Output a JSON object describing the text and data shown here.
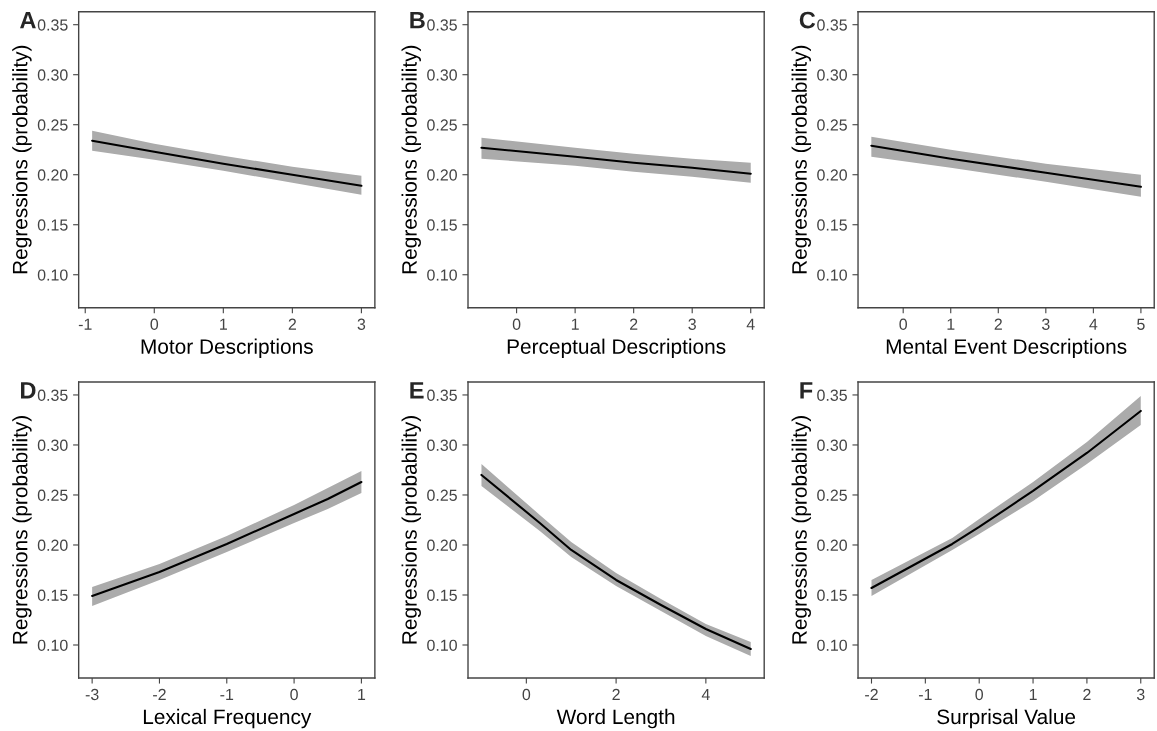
{
  "chart_data": [
    {
      "type": "line",
      "title": "A",
      "xlabel": "Motor Descriptions",
      "ylabel": "Regressions (probability)",
      "x": [
        -0.9,
        0,
        1,
        2,
        3
      ],
      "series": [
        {
          "color": "#000000",
          "values": [
            0.234,
            0.223,
            0.211,
            0.2,
            0.189
          ],
          "lower": [
            0.224,
            0.215,
            0.204,
            0.192,
            0.18
          ],
          "upper": [
            0.244,
            0.231,
            0.219,
            0.208,
            0.199
          ]
        }
      ],
      "xlim": [
        -1.095,
        3.195
      ],
      "xticks": [
        -1,
        0,
        1,
        2,
        3
      ],
      "ylim": [
        0.067,
        0.363
      ],
      "yticks": [
        {
          "value": 0.1,
          "label": "0.10"
        },
        {
          "value": 0.15,
          "label": "0.15"
        },
        {
          "value": 0.2,
          "label": "0.20"
        },
        {
          "value": 0.25,
          "label": "0.25"
        },
        {
          "value": 0.3,
          "label": "0.30"
        },
        {
          "value": 0.35,
          "label": "0.35"
        }
      ]
    },
    {
      "type": "line",
      "title": "B",
      "xlabel": "Perceptual Descriptions",
      "ylabel": "Regressions (probability)",
      "x": [
        -0.6,
        1,
        2,
        3,
        4
      ],
      "series": [
        {
          "color": "#000000",
          "values": [
            0.227,
            0.218,
            0.212,
            0.207,
            0.201
          ],
          "lower": [
            0.216,
            0.209,
            0.203,
            0.198,
            0.192
          ],
          "upper": [
            0.237,
            0.227,
            0.221,
            0.216,
            0.212
          ]
        }
      ],
      "xlim": [
        -0.83,
        4.23
      ],
      "xticks": [
        0,
        1,
        2,
        3,
        4
      ],
      "ylim": [
        0.067,
        0.363
      ],
      "yticks": [
        {
          "value": 0.1,
          "label": "0.10"
        },
        {
          "value": 0.15,
          "label": "0.15"
        },
        {
          "value": 0.2,
          "label": "0.20"
        },
        {
          "value": 0.25,
          "label": "0.25"
        },
        {
          "value": 0.3,
          "label": "0.30"
        },
        {
          "value": 0.35,
          "label": "0.35"
        }
      ]
    },
    {
      "type": "line",
      "title": "C",
      "xlabel": "Mental Event Descriptions",
      "ylabel": "Regressions (probability)",
      "x": [
        -0.67,
        1,
        3,
        5
      ],
      "series": [
        {
          "color": "#000000",
          "values": [
            0.229,
            0.216,
            0.202,
            0.188
          ],
          "lower": [
            0.218,
            0.207,
            0.193,
            0.178
          ],
          "upper": [
            0.238,
            0.225,
            0.211,
            0.2
          ]
        }
      ],
      "xlim": [
        -0.95,
        5.28
      ],
      "xticks": [
        0,
        1,
        2,
        3,
        4,
        5
      ],
      "ylim": [
        0.067,
        0.363
      ],
      "yticks": [
        {
          "value": 0.1,
          "label": "0.10"
        },
        {
          "value": 0.15,
          "label": "0.15"
        },
        {
          "value": 0.2,
          "label": "0.20"
        },
        {
          "value": 0.25,
          "label": "0.25"
        },
        {
          "value": 0.3,
          "label": "0.30"
        },
        {
          "value": 0.35,
          "label": "0.35"
        }
      ]
    },
    {
      "type": "line",
      "title": "D",
      "xlabel": "Lexical Frequency",
      "ylabel": "Regressions (probability)",
      "x": [
        -3,
        -2,
        -1,
        0,
        0.5,
        1
      ],
      "series": [
        {
          "color": "#000000",
          "values": [
            0.149,
            0.173,
            0.201,
            0.231,
            0.246,
            0.263
          ],
          "lower": [
            0.139,
            0.165,
            0.193,
            0.222,
            0.236,
            0.252
          ],
          "upper": [
            0.158,
            0.181,
            0.209,
            0.24,
            0.257,
            0.274
          ]
        }
      ],
      "xlim": [
        -3.2,
        1.2
      ],
      "xticks": [
        -3,
        -2,
        -1,
        0,
        1
      ],
      "ylim": [
        0.067,
        0.363
      ],
      "yticks": [
        {
          "value": 0.1,
          "label": "0.10"
        },
        {
          "value": 0.15,
          "label": "0.15"
        },
        {
          "value": 0.2,
          "label": "0.20"
        },
        {
          "value": 0.25,
          "label": "0.25"
        },
        {
          "value": 0.3,
          "label": "0.30"
        },
        {
          "value": 0.35,
          "label": "0.35"
        }
      ]
    },
    {
      "type": "line",
      "title": "E",
      "xlabel": "Word Length",
      "ylabel": "Regressions (probability)",
      "x": [
        -1,
        0.3,
        1,
        2,
        3,
        4,
        5
      ],
      "series": [
        {
          "color": "#000000",
          "values": [
            0.27,
            0.222,
            0.195,
            0.165,
            0.14,
            0.116,
            0.096
          ],
          "lower": [
            0.259,
            0.214,
            0.188,
            0.159,
            0.134,
            0.109,
            0.089
          ],
          "upper": [
            0.281,
            0.23,
            0.203,
            0.172,
            0.146,
            0.121,
            0.103
          ]
        }
      ],
      "xlim": [
        -1.3,
        5.3
      ],
      "xticks": [
        0,
        2,
        4
      ],
      "ylim": [
        0.067,
        0.363
      ],
      "yticks": [
        {
          "value": 0.1,
          "label": "0.10"
        },
        {
          "value": 0.15,
          "label": "0.15"
        },
        {
          "value": 0.2,
          "label": "0.20"
        },
        {
          "value": 0.25,
          "label": "0.25"
        },
        {
          "value": 0.3,
          "label": "0.30"
        },
        {
          "value": 0.35,
          "label": "0.35"
        }
      ]
    },
    {
      "type": "line",
      "title": "F",
      "xlabel": "Surprisal Value",
      "ylabel": "Regressions (probability)",
      "x": [
        -2,
        -0.5,
        0,
        1,
        2,
        3
      ],
      "series": [
        {
          "color": "#000000",
          "values": [
            0.157,
            0.201,
            0.218,
            0.254,
            0.292,
            0.334
          ],
          "lower": [
            0.149,
            0.195,
            0.211,
            0.244,
            0.281,
            0.32
          ],
          "upper": [
            0.165,
            0.207,
            0.226,
            0.263,
            0.303,
            0.349
          ]
        }
      ],
      "xlim": [
        -2.25,
        3.25
      ],
      "xticks": [
        -2,
        -1,
        0,
        1,
        2,
        3
      ],
      "ylim": [
        0.067,
        0.363
      ],
      "yticks": [
        {
          "value": 0.1,
          "label": "0.10"
        },
        {
          "value": 0.15,
          "label": "0.15"
        },
        {
          "value": 0.2,
          "label": "0.20"
        },
        {
          "value": 0.25,
          "label": "0.25"
        },
        {
          "value": 0.3,
          "label": "0.30"
        },
        {
          "value": 0.35,
          "label": "0.35"
        }
      ]
    }
  ]
}
